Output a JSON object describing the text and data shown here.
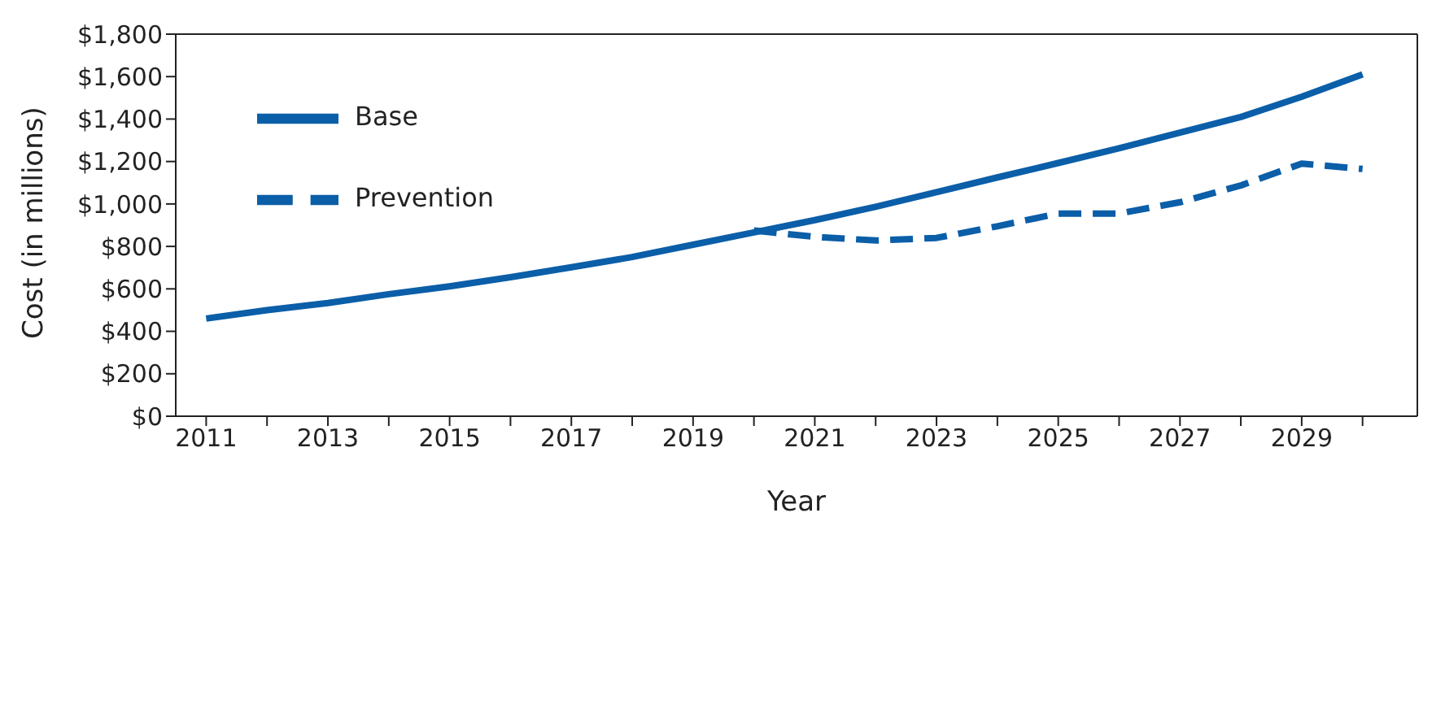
{
  "chart_data": {
    "type": "line",
    "xlabel": "Year",
    "ylabel": "Cost (in millions)",
    "x": [
      2011,
      2012,
      2013,
      2014,
      2015,
      2016,
      2017,
      2018,
      2019,
      2020,
      2021,
      2022,
      2023,
      2024,
      2025,
      2026,
      2027,
      2028,
      2029,
      2030
    ],
    "series": [
      {
        "name": "Base",
        "color": "#0b5ea8",
        "line_style": "solid",
        "values": [
          460,
          500,
          533,
          575,
          612,
          655,
          702,
          750,
          808,
          866,
          924,
          987,
          1056,
          1125,
          1193,
          1262,
          1336,
          1410,
          1505,
          1610
        ]
      },
      {
        "name": "Prevention",
        "color": "#0b5ea8",
        "line_style": "dashed",
        "values": [
          null,
          null,
          null,
          null,
          null,
          null,
          null,
          null,
          null,
          875,
          845,
          828,
          840,
          895,
          955,
          955,
          1008,
          1087,
          1190,
          1165
        ]
      }
    ],
    "xlim": [
      2010.5,
      2030.9
    ],
    "xticks": [
      2011,
      {
        "value": 2012,
        "label": null
      },
      2013,
      {
        "value": 2014,
        "label": null
      },
      2015,
      {
        "value": 2016,
        "label": null
      },
      2017,
      {
        "value": 2018,
        "label": null
      },
      2019,
      {
        "value": 2020,
        "label": null
      },
      2021,
      {
        "value": 2022,
        "label": null
      },
      2023,
      {
        "value": 2024,
        "label": null
      },
      2025,
      {
        "value": 2026,
        "label": null
      },
      2027,
      {
        "value": 2028,
        "label": null
      },
      2029,
      {
        "value": 2030,
        "label": null
      }
    ],
    "ylim": [
      0,
      1800
    ],
    "yticks": [
      {
        "value": 0,
        "label": "$0"
      },
      {
        "value": 200,
        "label": "$200"
      },
      {
        "value": 400,
        "label": "$400"
      },
      {
        "value": 600,
        "label": "$600"
      },
      {
        "value": 800,
        "label": "$800"
      },
      {
        "value": 1000,
        "label": "$1,000"
      },
      {
        "value": 1200,
        "label": "$1,200"
      },
      {
        "value": 1400,
        "label": "$1,400"
      },
      {
        "value": 1600,
        "label": "$1,600"
      },
      {
        "value": 1800,
        "label": "$1,800"
      }
    ],
    "grid": false,
    "legend": "top left",
    "marker": "none"
  }
}
